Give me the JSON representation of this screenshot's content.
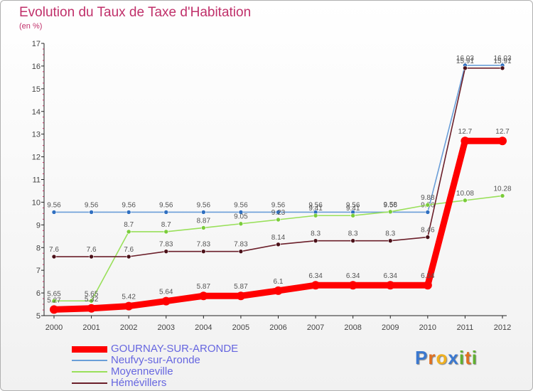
{
  "chart_data": {
    "type": "line",
    "title": "Evolution du Taux de Taxe d'Habitation",
    "subtitle": "(en %)",
    "xlabel": "",
    "ylabel": "",
    "categories": [
      "2000",
      "2001",
      "2002",
      "2003",
      "2004",
      "2005",
      "2006",
      "2007",
      "2008",
      "2009",
      "2010",
      "2011",
      "2012"
    ],
    "ylim": [
      5,
      17
    ],
    "yticks": [
      5,
      6,
      7,
      8,
      9,
      10,
      11,
      12,
      13,
      14,
      15,
      16,
      17
    ],
    "grid": false,
    "legend_position": "bottom-left",
    "series": [
      {
        "name": "Neufvy-sur-Aronde",
        "color": "#6a9ed8",
        "marker_color": "#2f6fc0",
        "values": [
          9.56,
          9.56,
          9.56,
          9.56,
          9.56,
          9.56,
          9.56,
          9.56,
          9.56,
          9.56,
          9.56,
          16.03,
          16.03
        ],
        "labels": [
          "9.56",
          "9.56",
          "9.56",
          "9.56",
          "9.56",
          "9.56",
          "9.56",
          "9.56",
          "9.56",
          "9.56",
          "9.56",
          "16.03",
          "16.03"
        ]
      },
      {
        "name": "Moyenneville",
        "color": "#99e05a",
        "marker_color": "#7acc3a",
        "values": [
          5.65,
          5.65,
          8.7,
          8.7,
          8.87,
          9.05,
          9.23,
          9.41,
          9.41,
          9.58,
          9.88,
          10.08,
          10.28
        ],
        "labels": [
          "5.65",
          "5.65",
          "8.7",
          "8.7",
          "8.87",
          "9.05",
          "9.23",
          "9.41",
          "9.41",
          "9.58",
          "9.88",
          "10.08",
          "10.28"
        ]
      },
      {
        "name": "Hémévillers",
        "color": "#6b1f2a",
        "marker_color": "#4a1018",
        "values": [
          7.6,
          7.6,
          7.6,
          7.83,
          7.83,
          7.83,
          8.14,
          8.3,
          8.3,
          8.3,
          8.46,
          15.91,
          15.91
        ],
        "labels": [
          "7.6",
          "7.6",
          "7.6",
          "7.83",
          "7.83",
          "7.83",
          "8.14",
          "8.3",
          "8.3",
          "8.3",
          "8.46",
          "15.91",
          "15.91"
        ]
      },
      {
        "name": "GOURNAY-SUR-ARONDE",
        "color": "#ff0000",
        "marker_color": "#ff0000",
        "values": [
          5.27,
          5.32,
          5.42,
          5.64,
          5.87,
          5.87,
          6.1,
          6.34,
          6.34,
          6.34,
          6.34,
          12.7,
          12.7
        ],
        "labels": [
          "5.27",
          "5.32",
          "5.42",
          "5.64",
          "5.87",
          "5.87",
          "6.1",
          "6.34",
          "6.34",
          "6.34",
          "6.34",
          "12.7",
          "12.7"
        ]
      }
    ]
  },
  "legend": [
    {
      "name": "GOURNAY-SUR-ARONDE",
      "color": "#ff0000"
    },
    {
      "name": "Neufvy-sur-Aronde",
      "color": "#6a9ed8"
    },
    {
      "name": "Moyenneville",
      "color": "#99e05a"
    },
    {
      "name": "Hémévillers",
      "color": "#6b1f2a"
    }
  ],
  "logo": {
    "letters": [
      "P",
      "r",
      "o",
      "x",
      "i",
      "t",
      "i"
    ],
    "colors": [
      "#3a78d0",
      "#e07020",
      "#f0b020",
      "#3a78d0",
      "#60b030",
      "#e07020",
      "#60b030"
    ]
  }
}
